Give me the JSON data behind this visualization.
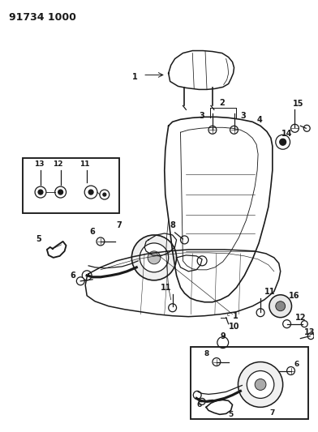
{
  "title": "91734 1000",
  "bg_color": "#ffffff",
  "line_color": "#1a1a1a",
  "title_fontsize": 9,
  "label_fontsize": 7,
  "figsize": [
    3.92,
    5.33
  ],
  "dpi": 100
}
